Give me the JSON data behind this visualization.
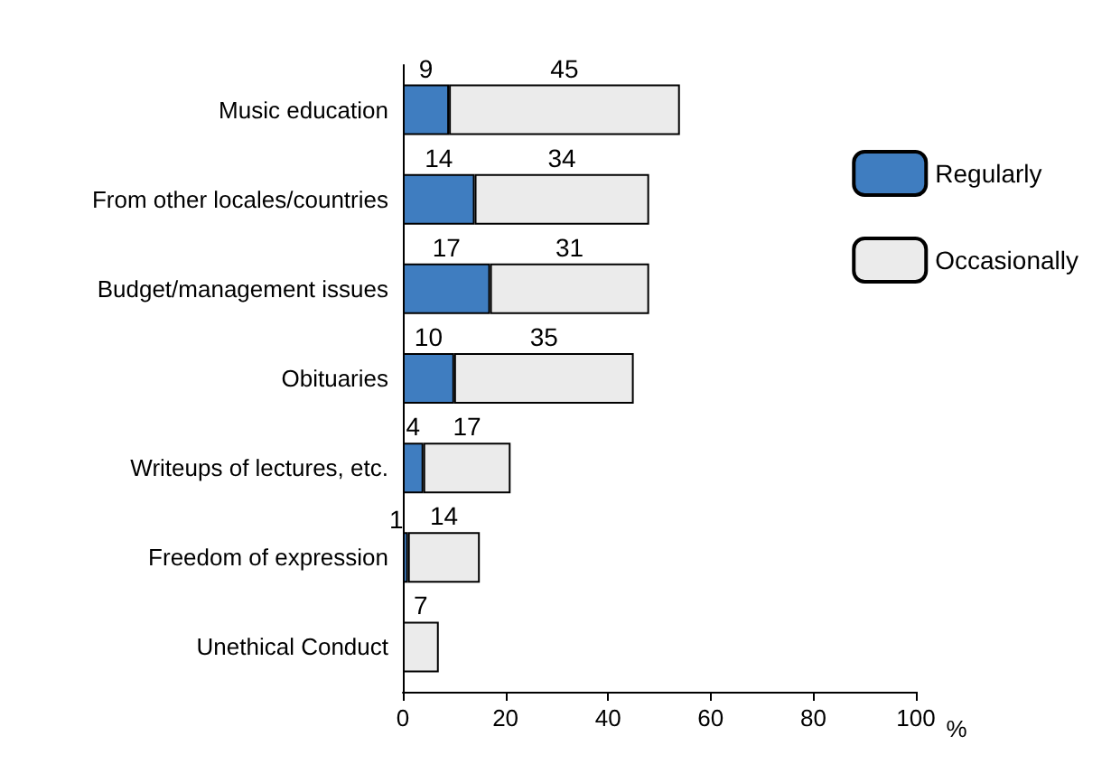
{
  "chart_data": {
    "type": "bar",
    "orientation": "horizontal",
    "stacked": true,
    "data_labels": true,
    "xlabel": "%",
    "categories": [
      "Music education",
      "From other locales/countries",
      "Budget/management issues",
      "Obituaries",
      "Writeups of lectures, etc.",
      "Freedom of expression",
      "Unethical Conduct"
    ],
    "series": [
      {
        "name": "Regularly",
        "color": "#3f7dc0",
        "values": [
          9,
          14,
          17,
          10,
          4,
          1,
          null
        ]
      },
      {
        "name": "Occasionally",
        "color": "#ebebeb",
        "values": [
          45,
          34,
          31,
          35,
          17,
          14,
          7
        ]
      }
    ],
    "xlim": [
      0,
      100
    ],
    "xticks": [
      0,
      20,
      40,
      60,
      80,
      100
    ],
    "grid": false,
    "legend": "right"
  }
}
